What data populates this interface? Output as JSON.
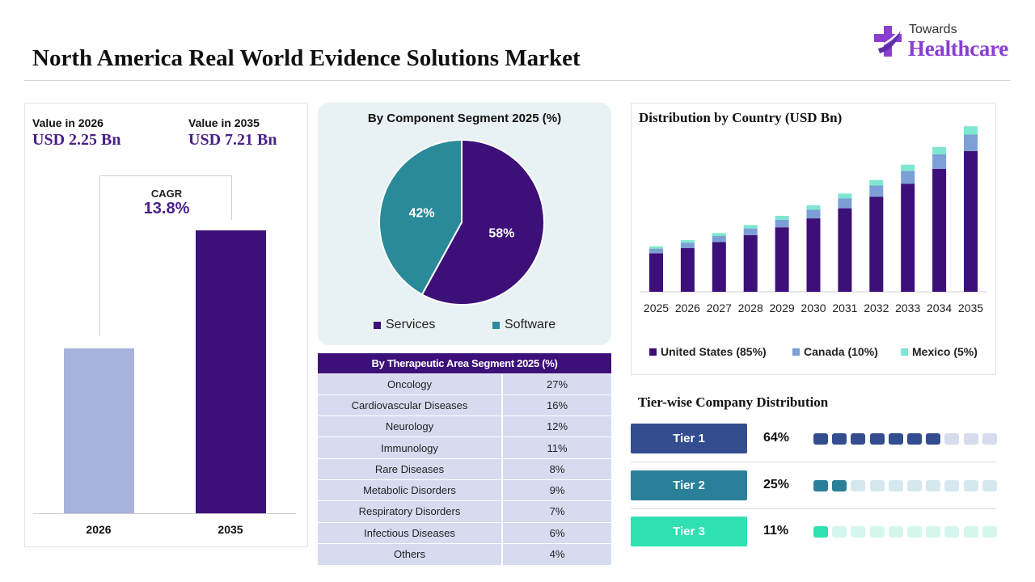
{
  "page": {
    "title": "North America Real World Evidence Solutions Market"
  },
  "logo": {
    "top": "Towards",
    "main": "Healthcare",
    "colors": {
      "primary": "#8a3fd1",
      "secondary": "#5b2ea6"
    }
  },
  "summary": {
    "value_2026_label": "Value in 2026",
    "value_2026": "USD 2.25 Bn",
    "value_2035_label": "Value in 2035",
    "value_2035": "USD 7.21 Bn",
    "cagr_label": "CAGR",
    "cagr_value": "13.8%"
  },
  "tiers": {
    "title": "Tier-wise Company Distribution",
    "items": [
      {
        "label": "Tier 1",
        "pct": "64%",
        "filled": 7,
        "color": "#334d8f",
        "light": "#d6dbee"
      },
      {
        "label": "Tier 2",
        "pct": "25%",
        "filled": 2,
        "color": "#2a7f99",
        "light": "#d5e8f0"
      },
      {
        "label": "Tier 3",
        "pct": "11%",
        "filled": 1,
        "color": "#2fe0b0",
        "light": "#d4f6ec"
      }
    ],
    "segments_total": 10
  },
  "chart_data": [
    {
      "type": "bar",
      "categories": [
        "2026",
        "2035"
      ],
      "values": [
        2.25,
        7.21
      ],
      "colors": [
        "#a8b3dc",
        "#3d0f78"
      ]
    },
    {
      "type": "pie",
      "title": "By Component Segment 2025 (%)",
      "labels": [
        "Services",
        "Software"
      ],
      "values": [
        58,
        42
      ],
      "value_labels": [
        "58%",
        "42%"
      ],
      "colors": [
        "#3d0f78",
        "#2b8a9a"
      ],
      "legend_position": "bottom"
    },
    {
      "type": "table",
      "title": "By Therapeutic Area Segment 2025 (%)",
      "rows": [
        [
          "Oncology",
          "27%"
        ],
        [
          "Cardiovascular Diseases",
          "16%"
        ],
        [
          "Neurology",
          "12%"
        ],
        [
          "Immunology",
          "11%"
        ],
        [
          "Rare Diseases",
          "8%"
        ],
        [
          "Metabolic Disorders",
          "9%"
        ],
        [
          "Respiratory Disorders",
          "7%"
        ],
        [
          "Infectious Diseases",
          "6%"
        ],
        [
          "Others",
          "4%"
        ]
      ]
    },
    {
      "type": "bar",
      "stacked": true,
      "title": "Distribution by Country (USD Bn)",
      "categories": [
        "2025",
        "2026",
        "2027",
        "2028",
        "2029",
        "2030",
        "2031",
        "2032",
        "2033",
        "2034",
        "2035"
      ],
      "series": [
        {
          "name": "United States (85%)",
          "color": "#3d0f78",
          "values": [
            1.68,
            1.91,
            2.17,
            2.47,
            2.81,
            3.2,
            3.64,
            4.14,
            4.71,
            5.36,
            6.13
          ]
        },
        {
          "name": "Canada (10%)",
          "color": "#7b9fd6",
          "values": [
            0.2,
            0.23,
            0.26,
            0.29,
            0.33,
            0.38,
            0.43,
            0.49,
            0.55,
            0.63,
            0.72
          ]
        },
        {
          "name": "Mexico (5%)",
          "color": "#7fe6d0",
          "values": [
            0.1,
            0.11,
            0.13,
            0.15,
            0.17,
            0.19,
            0.21,
            0.24,
            0.28,
            0.32,
            0.36
          ]
        }
      ],
      "ylim": [
        0,
        7.5
      ],
      "legend_position": "bottom",
      "grid": false
    }
  ]
}
